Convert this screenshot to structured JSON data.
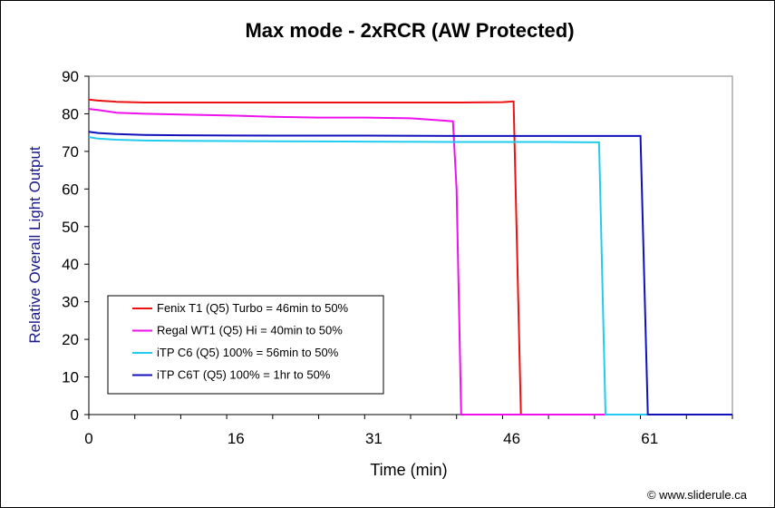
{
  "chart_data": {
    "type": "line",
    "title": "Max mode - 2xRCR (AW Protected)",
    "xlabel": "Time (min)",
    "ylabel": "Relative Overall Light Output",
    "xlim": [
      0,
      70
    ],
    "ylim": [
      0,
      90
    ],
    "x_ticks": [
      0,
      16,
      31,
      46,
      61
    ],
    "x_minor_step": 5,
    "y_ticks": [
      0,
      10,
      20,
      30,
      40,
      50,
      60,
      70,
      80,
      90
    ],
    "grid": false,
    "legend_position": "lower-left",
    "series": [
      {
        "name": "Fenix T1 (Q5) Turbo = 46min to 50%",
        "color": "#ee1111",
        "points": [
          [
            0,
            83.8
          ],
          [
            1,
            83.5
          ],
          [
            3,
            83.2
          ],
          [
            6,
            83
          ],
          [
            10,
            83
          ],
          [
            20,
            83
          ],
          [
            30,
            83
          ],
          [
            40,
            83
          ],
          [
            45,
            83.1
          ],
          [
            46.2,
            83.3
          ],
          [
            47,
            0
          ],
          [
            70,
            0
          ]
        ]
      },
      {
        "name": "Regal WT1 (Q5) Hi  = 40min to 50%",
        "color": "#ee11ee",
        "points": [
          [
            0,
            81.3
          ],
          [
            1,
            81
          ],
          [
            3,
            80.3
          ],
          [
            6,
            80
          ],
          [
            10,
            79.8
          ],
          [
            16,
            79.5
          ],
          [
            20,
            79.2
          ],
          [
            25,
            79
          ],
          [
            30,
            79
          ],
          [
            35,
            78.8
          ],
          [
            38,
            78.3
          ],
          [
            39.6,
            78
          ],
          [
            40,
            60
          ],
          [
            40.5,
            0
          ],
          [
            70,
            0
          ]
        ]
      },
      {
        "name": "iTP C6 (Q5) 100% = 56min to 50%",
        "color": "#22ccee",
        "points": [
          [
            0,
            73.8
          ],
          [
            1,
            73.4
          ],
          [
            3,
            73.1
          ],
          [
            6,
            72.9
          ],
          [
            10,
            72.8
          ],
          [
            20,
            72.7
          ],
          [
            30,
            72.6
          ],
          [
            40,
            72.5
          ],
          [
            50,
            72.5
          ],
          [
            55.5,
            72.4
          ],
          [
            56.2,
            0
          ],
          [
            70,
            0
          ]
        ]
      },
      {
        "name": "iTP C6T (Q5) 100% = 1hr to 50%",
        "color": "#1111bb",
        "points": [
          [
            0,
            75.2
          ],
          [
            1,
            74.9
          ],
          [
            3,
            74.6
          ],
          [
            6,
            74.4
          ],
          [
            10,
            74.3
          ],
          [
            20,
            74.2
          ],
          [
            30,
            74.2
          ],
          [
            40,
            74.1
          ],
          [
            50,
            74.1
          ],
          [
            55,
            74.1
          ],
          [
            60,
            74.1
          ],
          [
            60.8,
            0
          ],
          [
            70,
            0
          ]
        ]
      }
    ]
  },
  "credit": "© www.sliderule.ca"
}
